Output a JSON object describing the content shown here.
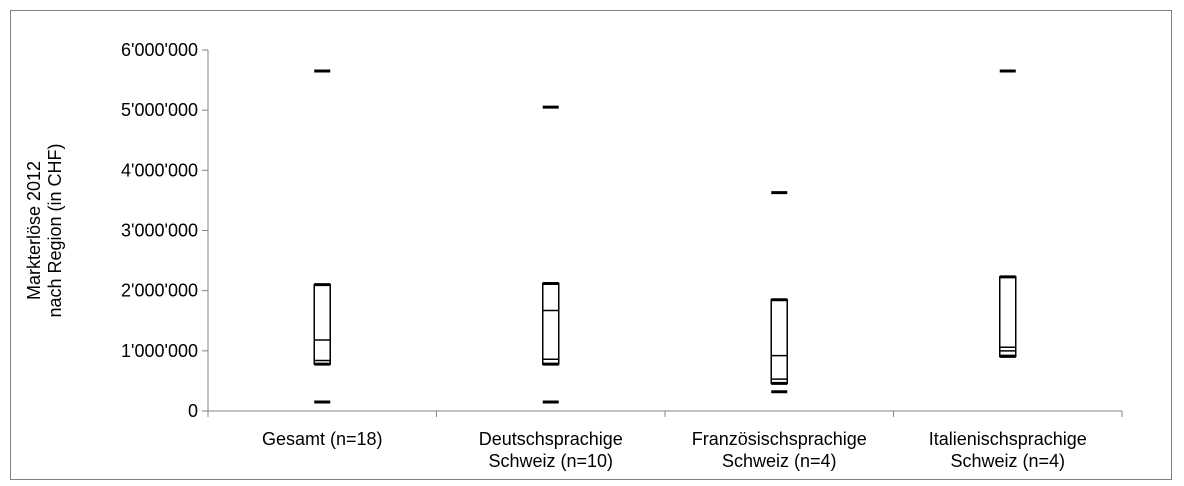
{
  "chart_data": {
    "type": "boxplot",
    "ylabel_lines": [
      "Markterlöse  2012",
      "nach Region  (in CHF)"
    ],
    "ylim": [
      0,
      6000000
    ],
    "yticks": [
      {
        "value": 0,
        "label": "0"
      },
      {
        "value": 1000000,
        "label": "1'000'000"
      },
      {
        "value": 2000000,
        "label": "2'000'000"
      },
      {
        "value": 3000000,
        "label": "3'000'000"
      },
      {
        "value": 4000000,
        "label": "4'000'000"
      },
      {
        "value": 5000000,
        "label": "5'000'000"
      },
      {
        "value": 6000000,
        "label": "6'000'000"
      }
    ],
    "grid": false,
    "categories": [
      {
        "lines": [
          "Gesamt (n=18)"
        ]
      },
      {
        "lines": [
          "Deutschsprachige",
          "Schweiz (n=10)"
        ]
      },
      {
        "lines": [
          "Französischsprachige",
          "Schweiz (n=4)"
        ]
      },
      {
        "lines": [
          "Italienischsprachige",
          "Schweiz (n=4)"
        ]
      }
    ],
    "boxes": [
      {
        "min": 150000,
        "q1": 780000,
        "median": 1180000,
        "mean": 840000,
        "q3": 2100000,
        "max": 5650000
      },
      {
        "min": 150000,
        "q1": 780000,
        "median": 1670000,
        "mean": 860000,
        "q3": 2120000,
        "max": 5050000
      },
      {
        "min": 320000,
        "q1": 460000,
        "median": 920000,
        "mean": 530000,
        "q3": 1850000,
        "max": 3630000
      },
      {
        "min": 910000,
        "q1": 910000,
        "median": 1060000,
        "mean": 1000000,
        "q3": 2230000,
        "max": 5650000
      }
    ]
  }
}
